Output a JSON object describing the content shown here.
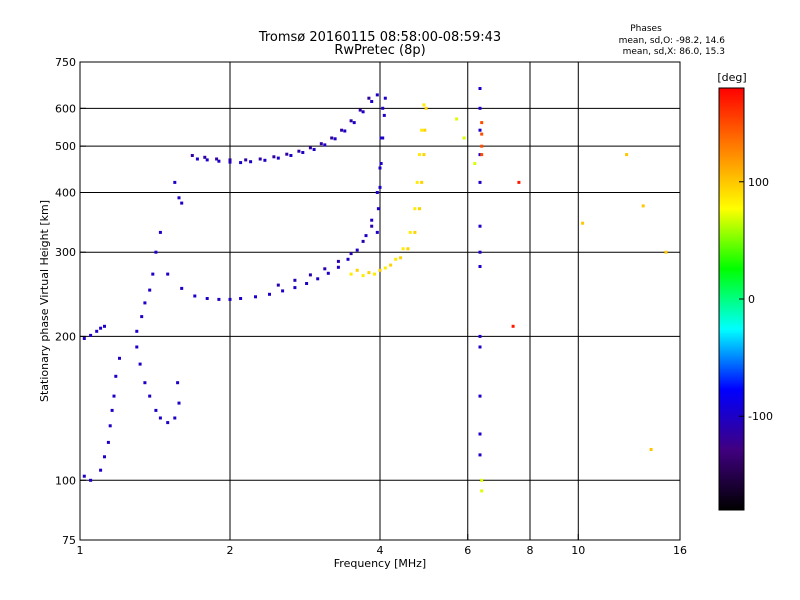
{
  "chart_data": {
    "type": "scatter",
    "title": "Tromsø 20160115 08:58:00-08:59:43",
    "subtitle": "RwPretec (8p)",
    "xlabel": "Frequency [MHz]",
    "ylabel": "Stationary phase Virtual Height [km]",
    "x_scale": "log2",
    "y_scale": "log",
    "xlim": [
      1,
      16
    ],
    "ylim": [
      75,
      750
    ],
    "x_ticks": [
      1,
      2,
      4,
      6,
      8,
      10,
      16
    ],
    "y_ticks": [
      75,
      100,
      200,
      300,
      400,
      500,
      600,
      750
    ],
    "x_gridlines": [
      2,
      4,
      6,
      8,
      10
    ],
    "y_gridlines": [
      100,
      200,
      300,
      400,
      500,
      600
    ],
    "grid": true,
    "phases_block": {
      "heading": "Phases",
      "line_o": "mean, sd,O: -98.2, 14.6",
      "line_x": "mean, sd,X: 86.0, 15.3"
    },
    "colorbar": {
      "label": "[deg]",
      "range": [
        -180,
        180
      ],
      "ticks": [
        100,
        0,
        -100
      ],
      "colors": [
        "#ff0000",
        "#ff8000",
        "#ffff00",
        "#00ff00",
        "#00ffff",
        "#0000ff",
        "#400080",
        "#000000"
      ]
    },
    "traces": [
      {
        "phase": -100,
        "points": [
          [
            1.72,
            470
          ],
          [
            1.8,
            468
          ],
          [
            1.9,
            465
          ],
          [
            2.0,
            463
          ],
          [
            2.1,
            462
          ],
          [
            2.2,
            464
          ],
          [
            2.35,
            467
          ],
          [
            2.5,
            472
          ],
          [
            2.65,
            478
          ],
          [
            2.8,
            485
          ],
          [
            2.95,
            492
          ],
          [
            3.1,
            503
          ],
          [
            3.25,
            518
          ],
          [
            3.4,
            538
          ],
          [
            3.55,
            560
          ],
          [
            3.7,
            590
          ],
          [
            3.85,
            620
          ],
          [
            3.95,
            640
          ]
        ]
      },
      {
        "phase": -115,
        "points": [
          [
            1.68,
            478
          ],
          [
            1.78,
            474
          ],
          [
            1.88,
            470
          ],
          [
            2.0,
            468
          ],
          [
            2.15,
            468
          ],
          [
            2.3,
            470
          ],
          [
            2.45,
            475
          ],
          [
            2.6,
            481
          ],
          [
            2.75,
            488
          ],
          [
            2.9,
            496
          ],
          [
            3.05,
            506
          ],
          [
            3.2,
            520
          ],
          [
            3.35,
            540
          ],
          [
            3.5,
            565
          ],
          [
            3.65,
            595
          ],
          [
            3.8,
            630
          ]
        ]
      },
      {
        "phase": -100,
        "points": [
          [
            1.5,
            270
          ],
          [
            1.6,
            252
          ],
          [
            1.7,
            243
          ],
          [
            1.8,
            240
          ],
          [
            1.9,
            239
          ],
          [
            2.0,
            239
          ],
          [
            2.1,
            240
          ],
          [
            2.25,
            242
          ],
          [
            2.4,
            245
          ],
          [
            2.55,
            249
          ],
          [
            2.7,
            253
          ],
          [
            2.85,
            258
          ],
          [
            3.0,
            264
          ],
          [
            3.15,
            271
          ],
          [
            3.3,
            279
          ],
          [
            3.45,
            290
          ],
          [
            3.6,
            303
          ],
          [
            3.75,
            325
          ],
          [
            3.85,
            350
          ],
          [
            3.95,
            400
          ],
          [
            4.0,
            450
          ],
          [
            4.02,
            520
          ],
          [
            4.05,
            600
          ]
        ]
      },
      {
        "phase": -110,
        "points": [
          [
            2.5,
            256
          ],
          [
            2.7,
            262
          ],
          [
            2.9,
            269
          ],
          [
            3.1,
            277
          ],
          [
            3.3,
            287
          ],
          [
            3.5,
            298
          ],
          [
            3.7,
            316
          ],
          [
            3.85,
            340
          ]
        ]
      },
      {
        "phase": -100,
        "points": [
          [
            3.95,
            330
          ],
          [
            3.97,
            370
          ],
          [
            4.0,
            410
          ],
          [
            4.02,
            460
          ],
          [
            4.05,
            520
          ],
          [
            4.08,
            580
          ],
          [
            4.1,
            630
          ]
        ]
      },
      {
        "phase": 95,
        "points": [
          [
            3.6,
            275
          ],
          [
            3.8,
            272
          ],
          [
            4.0,
            275
          ],
          [
            4.2,
            282
          ],
          [
            4.4,
            292
          ],
          [
            4.55,
            305
          ],
          [
            4.7,
            330
          ],
          [
            4.8,
            370
          ],
          [
            4.85,
            420
          ],
          [
            4.9,
            480
          ],
          [
            4.92,
            540
          ],
          [
            4.95,
            600
          ]
        ]
      },
      {
        "phase": 85,
        "points": [
          [
            3.5,
            270
          ],
          [
            3.7,
            268
          ],
          [
            3.9,
            270
          ],
          [
            4.1,
            278
          ],
          [
            4.3,
            290
          ],
          [
            4.45,
            305
          ],
          [
            4.6,
            330
          ],
          [
            4.7,
            370
          ],
          [
            4.75,
            420
          ],
          [
            4.8,
            480
          ],
          [
            4.85,
            540
          ],
          [
            4.9,
            610
          ]
        ]
      },
      {
        "phase": -100,
        "points": [
          [
            1.45,
            330
          ],
          [
            1.42,
            300
          ],
          [
            1.4,
            270
          ],
          [
            1.38,
            250
          ],
          [
            1.35,
            235
          ],
          [
            1.33,
            220
          ],
          [
            1.3,
            205
          ],
          [
            1.3,
            190
          ],
          [
            1.32,
            175
          ],
          [
            1.35,
            160
          ],
          [
            1.38,
            150
          ],
          [
            1.42,
            140
          ],
          [
            1.45,
            135
          ],
          [
            1.5,
            132
          ],
          [
            1.55,
            135
          ],
          [
            1.58,
            145
          ],
          [
            1.57,
            160
          ]
        ]
      },
      {
        "phase": -100,
        "points": [
          [
            1.2,
            180
          ],
          [
            1.18,
            165
          ],
          [
            1.17,
            150
          ],
          [
            1.16,
            140
          ],
          [
            1.15,
            130
          ],
          [
            1.14,
            120
          ],
          [
            1.12,
            112
          ],
          [
            1.1,
            105
          ],
          [
            1.05,
            100
          ],
          [
            1.02,
            102
          ]
        ]
      },
      {
        "phase": -100,
        "points": [
          [
            1.02,
            198
          ],
          [
            1.05,
            201
          ],
          [
            1.08,
            205
          ],
          [
            1.1,
            208
          ],
          [
            1.12,
            210
          ]
        ]
      },
      {
        "phase": -100,
        "points": [
          [
            1.55,
            420
          ],
          [
            1.58,
            390
          ],
          [
            1.6,
            380
          ]
        ]
      },
      {
        "phase": -100,
        "points": [
          [
            6.35,
            660
          ],
          [
            6.35,
            600
          ],
          [
            6.35,
            540
          ],
          [
            6.35,
            480
          ],
          [
            6.35,
            420
          ],
          [
            6.35,
            340
          ],
          [
            6.35,
            300
          ],
          [
            6.35,
            280
          ],
          [
            6.35,
            200
          ],
          [
            6.35,
            190
          ],
          [
            6.35,
            150
          ],
          [
            6.35,
            125
          ],
          [
            6.35,
            113
          ]
        ]
      },
      {
        "phase": 150,
        "points": [
          [
            6.4,
            560
          ],
          [
            6.4,
            530
          ],
          [
            6.4,
            500
          ],
          [
            6.4,
            480
          ]
        ]
      },
      {
        "phase": 70,
        "points": [
          [
            5.7,
            570
          ],
          [
            5.9,
            520
          ],
          [
            6.2,
            460
          ],
          [
            6.4,
            100
          ],
          [
            6.4,
            95
          ]
        ]
      },
      {
        "phase": 100,
        "points": [
          [
            12.5,
            480
          ],
          [
            13.5,
            375
          ],
          [
            14.0,
            116
          ],
          [
            10.2,
            345
          ],
          [
            15.0,
            300
          ]
        ]
      },
      {
        "phase": 170,
        "points": [
          [
            7.6,
            420
          ],
          [
            7.4,
            210
          ]
        ]
      }
    ]
  }
}
